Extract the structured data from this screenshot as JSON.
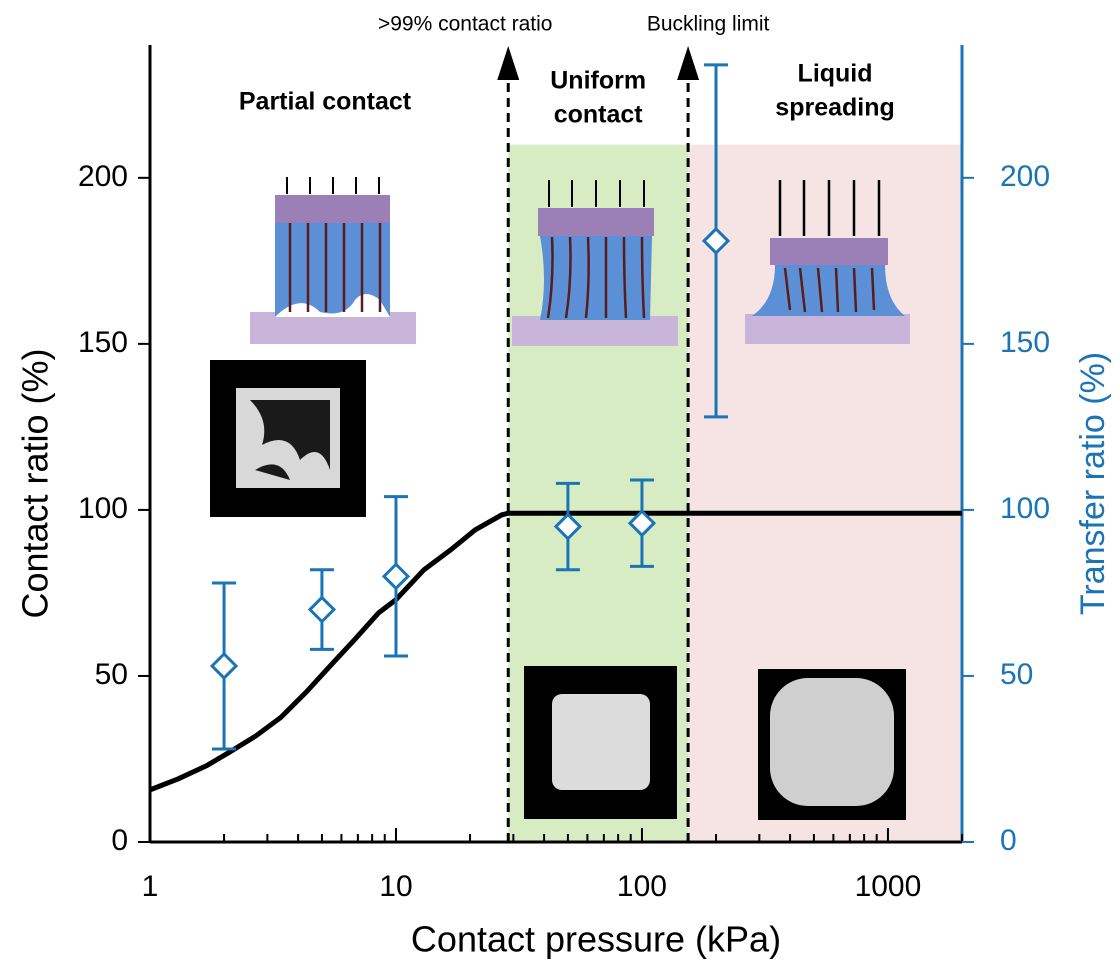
{
  "chart_data": {
    "type": "line",
    "xlabel": "Contact pressure (kPa)",
    "ylabel": "Contact ratio (%)",
    "y2label": "Transfer ratio (%)",
    "xscale": "log",
    "xlim": [
      1,
      2000
    ],
    "xticks": [
      1,
      10,
      100,
      1000
    ],
    "ylim": [
      0,
      240
    ],
    "yticks": [
      0,
      50,
      100,
      150,
      200
    ],
    "y2lim": [
      0,
      240
    ],
    "y2ticks": [
      0,
      50,
      100,
      150,
      200
    ],
    "y2color": "#1a74b6",
    "annotations": [
      "Partial contact"
    ],
    "markers": [
      {
        "x": 28.6,
        "label": ">99% contact ratio"
      },
      {
        "x": 154,
        "label": "Buckling limit"
      }
    ],
    "regions": [
      {
        "label": "Uniform contact",
        "color": "#d8ecc4",
        "top": 210
      },
      {
        "label": "Liquid spreading",
        "color": "#f6e4e4",
        "top": 210
      }
    ],
    "series": [
      {
        "name": "Contact ratio",
        "color": "#000000",
        "x": [
          1,
          1.3,
          1.7,
          2.1,
          2.7,
          3.4,
          4.3,
          5.4,
          6.8,
          8.5,
          10,
          13,
          16.7,
          21,
          26.9,
          28.6,
          50,
          100,
          200,
          500,
          1000,
          2000
        ],
        "values": [
          15.7,
          19,
          23,
          27,
          32,
          37.5,
          45,
          53,
          61,
          69,
          73,
          82,
          88,
          94,
          98.5,
          99,
          99,
          99,
          99,
          99,
          99,
          99
        ]
      },
      {
        "name": "Transfer ratio",
        "color": "#1a74b6",
        "axis": "y2",
        "marker": "diamond",
        "x": [
          2,
          5,
          10,
          50,
          100,
          200
        ],
        "values": [
          53,
          70,
          80,
          95,
          96,
          181
        ],
        "errors": [
          25,
          12,
          24,
          13,
          13,
          53
        ]
      }
    ]
  }
}
